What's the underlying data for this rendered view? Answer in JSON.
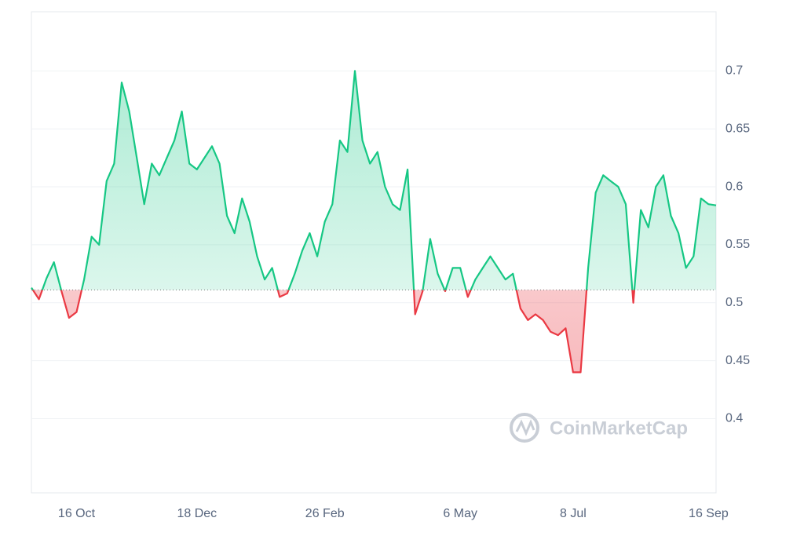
{
  "chart_data": {
    "type": "line",
    "categories": [
      null,
      null,
      null,
      null,
      null,
      null,
      "16 Oct",
      null,
      null,
      null,
      null,
      null,
      null,
      null,
      null,
      null,
      null,
      null,
      null,
      null,
      null,
      null,
      "18 Dec",
      null,
      null,
      null,
      null,
      null,
      null,
      null,
      null,
      null,
      null,
      null,
      null,
      null,
      null,
      null,
      null,
      "26 Feb",
      null,
      null,
      null,
      null,
      null,
      null,
      null,
      null,
      null,
      null,
      null,
      null,
      null,
      null,
      null,
      null,
      null,
      "6 May",
      null,
      null,
      null,
      null,
      null,
      null,
      null,
      null,
      null,
      null,
      null,
      null,
      null,
      null,
      "8 Jul",
      null,
      null,
      null,
      null,
      null,
      null,
      null,
      null,
      null,
      null,
      null,
      null,
      null,
      null,
      null,
      null,
      null,
      "16 Sep",
      null
    ],
    "values": [
      0.513,
      0.503,
      0.521,
      0.535,
      0.51,
      0.487,
      0.492,
      0.52,
      0.557,
      0.55,
      0.605,
      0.62,
      0.69,
      0.665,
      0.625,
      0.585,
      0.62,
      0.61,
      0.625,
      0.64,
      0.665,
      0.62,
      0.615,
      0.625,
      0.635,
      0.62,
      0.575,
      0.56,
      0.59,
      0.57,
      0.54,
      0.52,
      0.53,
      0.505,
      0.508,
      0.525,
      0.545,
      0.56,
      0.54,
      0.57,
      0.585,
      0.64,
      0.63,
      0.7,
      0.64,
      0.62,
      0.63,
      0.6,
      0.585,
      0.58,
      0.615,
      0.49,
      0.51,
      0.555,
      0.525,
      0.51,
      0.53,
      0.53,
      0.505,
      0.52,
      0.53,
      0.54,
      0.53,
      0.52,
      0.525,
      0.495,
      0.485,
      0.49,
      0.485,
      0.475,
      0.472,
      0.478,
      0.44,
      0.44,
      0.53,
      0.595,
      0.61,
      0.605,
      0.6,
      0.585,
      0.5,
      0.58,
      0.565,
      0.6,
      0.61,
      0.575,
      0.56,
      0.53,
      0.54,
      0.59,
      0.585,
      0.584
    ],
    "baseline": 0.511,
    "up_color": "#16c784",
    "down_color": "#ea3943",
    "ylim": [
      0.336,
      0.751
    ],
    "yticks": [
      0.4,
      0.45,
      0.5,
      0.55,
      0.6,
      0.65,
      0.7
    ],
    "grid": true,
    "watermark": "CoinMarketCap"
  }
}
